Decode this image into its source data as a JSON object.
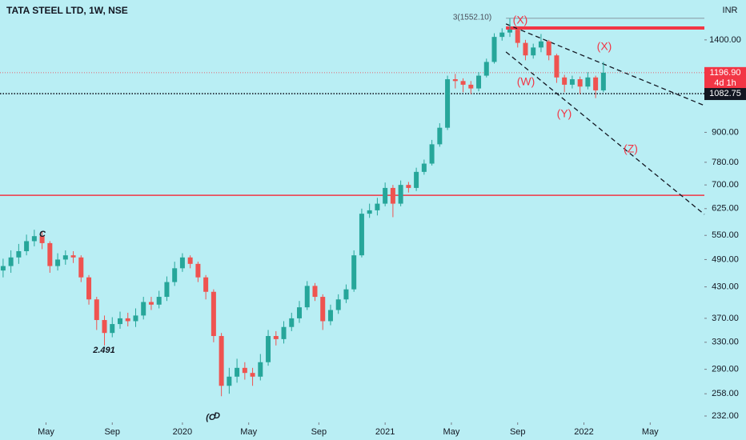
{
  "chart_data": {
    "type": "candlestick",
    "title": "TATA STEEL LTD, 1W, NSE",
    "currency": "INR",
    "log_scale": true,
    "up_color": "#26a69a",
    "down_color": "#ef5350",
    "xlim": [
      -46.8,
      133.9
    ],
    "xticks": [
      {
        "value": -35,
        "label": "May"
      },
      {
        "value": -18,
        "label": "Sep"
      },
      {
        "value": 0,
        "label": "2020"
      },
      {
        "value": 17,
        "label": "May"
      },
      {
        "value": 35,
        "label": "Sep"
      },
      {
        "value": 52,
        "label": "2021"
      },
      {
        "value": 69,
        "label": "May"
      },
      {
        "value": 86,
        "label": "Sep"
      },
      {
        "value": 103,
        "label": "2022"
      },
      {
        "value": 120,
        "label": "May"
      }
    ],
    "ylim": [
      225,
      1694
    ],
    "yticks": [
      {
        "value": 1400,
        "label": "1400.00"
      },
      {
        "value": 900,
        "label": "900.00"
      },
      {
        "value": 780,
        "label": "780.00"
      },
      {
        "value": 700,
        "label": "700.00"
      },
      {
        "value": 625,
        "label": "625.00"
      },
      {
        "value": 550,
        "label": "550.00"
      },
      {
        "value": 490,
        "label": "490.00"
      },
      {
        "value": 430,
        "label": "430.00"
      },
      {
        "value": 370,
        "label": "370.00"
      },
      {
        "value": 330,
        "label": "330.00"
      },
      {
        "value": 290,
        "label": "290.00"
      },
      {
        "value": 258,
        "label": "258.00"
      },
      {
        "value": 232,
        "label": "232.00"
      }
    ],
    "x": [
      -46,
      -44,
      -42,
      -40,
      -38,
      -36,
      -34,
      -32,
      -30,
      -28,
      -26,
      -24,
      -22,
      -20,
      -18,
      -16,
      -14,
      -12,
      -10,
      -8,
      -6,
      -4,
      -2,
      0,
      2,
      4,
      6,
      8,
      10,
      12,
      14,
      16,
      18,
      20,
      22,
      24,
      26,
      28,
      30,
      32,
      34,
      36,
      38,
      40,
      42,
      44,
      46,
      48,
      50,
      52,
      54,
      56,
      58,
      60,
      62,
      64,
      66,
      68,
      70,
      72,
      74,
      76,
      78,
      80,
      82,
      84,
      86,
      88,
      90,
      92,
      94,
      96,
      98,
      100,
      102,
      104,
      106,
      108
    ],
    "candles": [
      [
        465,
        492,
        450,
        475
      ],
      [
        475,
        512,
        460,
        495
      ],
      [
        495,
        528,
        480,
        510
      ],
      [
        510,
        552,
        500,
        535
      ],
      [
        535,
        565,
        522,
        548
      ],
      [
        548,
        560,
        515,
        530
      ],
      [
        530,
        535,
        460,
        475
      ],
      [
        475,
        505,
        465,
        490
      ],
      [
        490,
        512,
        478,
        500
      ],
      [
        500,
        510,
        482,
        495
      ],
      [
        495,
        500,
        440,
        450
      ],
      [
        450,
        455,
        395,
        405
      ],
      [
        405,
        410,
        350,
        367
      ],
      [
        367,
        375,
        325,
        345
      ],
      [
        345,
        372,
        338,
        360
      ],
      [
        360,
        382,
        352,
        370
      ],
      [
        370,
        380,
        356,
        365
      ],
      [
        365,
        388,
        355,
        375
      ],
      [
        375,
        410,
        368,
        400
      ],
      [
        400,
        410,
        385,
        395
      ],
      [
        395,
        422,
        388,
        410
      ],
      [
        410,
        452,
        402,
        440
      ],
      [
        440,
        485,
        432,
        470
      ],
      [
        470,
        505,
        462,
        495
      ],
      [
        495,
        500,
        470,
        480
      ],
      [
        480,
        485,
        440,
        450
      ],
      [
        450,
        455,
        405,
        420
      ],
      [
        420,
        425,
        330,
        340
      ],
      [
        340,
        345,
        255,
        268
      ],
      [
        268,
        292,
        258,
        280
      ],
      [
        280,
        305,
        272,
        292
      ],
      [
        292,
        300,
        276,
        285
      ],
      [
        285,
        292,
        268,
        280
      ],
      [
        280,
        312,
        275,
        300
      ],
      [
        300,
        350,
        295,
        340
      ],
      [
        340,
        348,
        325,
        335
      ],
      [
        335,
        365,
        328,
        355
      ],
      [
        355,
        380,
        348,
        370
      ],
      [
        370,
        402,
        362,
        390
      ],
      [
        390,
        442,
        385,
        432
      ],
      [
        432,
        438,
        402,
        410
      ],
      [
        410,
        415,
        350,
        365
      ],
      [
        365,
        395,
        358,
        385
      ],
      [
        385,
        415,
        378,
        405
      ],
      [
        405,
        435,
        398,
        425
      ],
      [
        425,
        512,
        420,
        500
      ],
      [
        500,
        625,
        495,
        610
      ],
      [
        610,
        640,
        598,
        620
      ],
      [
        620,
        658,
        605,
        640
      ],
      [
        640,
        708,
        632,
        690
      ],
      [
        690,
        700,
        600,
        640
      ],
      [
        640,
        715,
        632,
        700
      ],
      [
        700,
        710,
        675,
        690
      ],
      [
        690,
        760,
        680,
        745
      ],
      [
        745,
        790,
        735,
        775
      ],
      [
        775,
        868,
        768,
        850
      ],
      [
        850,
        940,
        840,
        920
      ],
      [
        920,
        1180,
        910,
        1160
      ],
      [
        1160,
        1190,
        1110,
        1150
      ],
      [
        1150,
        1165,
        1090,
        1130
      ],
      [
        1130,
        1150,
        1080,
        1110
      ],
      [
        1110,
        1200,
        1095,
        1180
      ],
      [
        1180,
        1280,
        1170,
        1260
      ],
      [
        1260,
        1445,
        1250,
        1420
      ],
      [
        1420,
        1480,
        1395,
        1450
      ],
      [
        1450,
        1552,
        1420,
        1470
      ],
      [
        1470,
        1490,
        1350,
        1380
      ],
      [
        1380,
        1400,
        1270,
        1300
      ],
      [
        1300,
        1375,
        1280,
        1350
      ],
      [
        1350,
        1440,
        1320,
        1390
      ],
      [
        1390,
        1400,
        1270,
        1300
      ],
      [
        1300,
        1310,
        1140,
        1170
      ],
      [
        1170,
        1185,
        1090,
        1130
      ],
      [
        1130,
        1180,
        1110,
        1160
      ],
      [
        1160,
        1175,
        1080,
        1120
      ],
      [
        1120,
        1200,
        1105,
        1170
      ],
      [
        1170,
        1180,
        1060,
        1100
      ],
      [
        1100,
        1260,
        1090,
        1197
      ]
    ],
    "levels": [
      {
        "value": 666,
        "color": "#f23645",
        "from_x": -46.8
      },
      {
        "value": 1482,
        "color": "#f23645",
        "from_x": 83
      },
      {
        "value": 1552.1,
        "color": "#787b86",
        "from_x": 83
      }
    ],
    "trendlines": [
      [
        [
          83,
          1511
        ],
        [
          133.9,
          1023
        ]
      ],
      [
        [
          83,
          1322
        ],
        [
          133.9,
          608
        ]
      ]
    ],
    "price_lines": [
      {
        "value": 1196.9,
        "label": "1196.90",
        "note": "4d 1h",
        "color": "#f23645"
      },
      {
        "value": 1082.75,
        "label": "1082.75",
        "color": "#131722"
      }
    ],
    "annotations": [
      "3(1552.10)",
      "(X)",
      "(X)",
      "(W)",
      "(Y)",
      "(Z)",
      "2.491",
      "C",
      "(C",
      "D"
    ]
  }
}
